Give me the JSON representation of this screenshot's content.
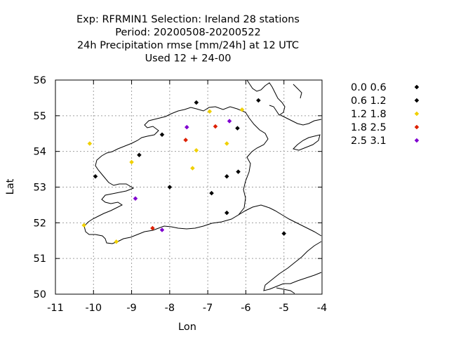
{
  "chart_data": {
    "type": "scatter",
    "title_lines": [
      "Exp: RFRMIN1   Selection: Ireland     28 stations",
      "Period: 20200508-20200522",
      "24h Precipitation rmse [mm/24h] at  12 UTC",
      "Used  12 + 24-00"
    ],
    "xlabel": "Lon",
    "ylabel": "Lat",
    "xlim": [
      -11,
      -4
    ],
    "ylim": [
      50,
      56
    ],
    "xticks": [
      -11,
      -10,
      -9,
      -8,
      -7,
      -6,
      -5,
      -4
    ],
    "yticks": [
      50,
      51,
      52,
      53,
      54,
      55,
      56
    ],
    "grid": true,
    "legend_position": "right",
    "series": [
      {
        "name": "0.0 0.6",
        "color": "#000000",
        "points": [
          [
            -7.3,
            55.37
          ],
          [
            -8.2,
            54.47
          ],
          [
            -8.8,
            53.9
          ],
          [
            -9.95,
            53.3
          ],
          [
            -8.0,
            53.0
          ],
          [
            -6.9,
            52.83
          ],
          [
            -6.5,
            53.3
          ],
          [
            -6.2,
            53.43
          ],
          [
            -6.5,
            52.28
          ],
          [
            -6.22,
            54.65
          ],
          [
            -5.67,
            55.43
          ],
          [
            -5.0,
            51.7
          ]
        ]
      },
      {
        "name": "0.6 1.2",
        "color": "#000000",
        "points": []
      },
      {
        "name": "1.2 1.8",
        "color": "#f0d000",
        "points": [
          [
            -10.1,
            54.22
          ],
          [
            -6.95,
            55.12
          ],
          [
            -6.1,
            55.17
          ],
          [
            -7.3,
            54.03
          ],
          [
            -6.5,
            54.22
          ],
          [
            -9.0,
            53.7
          ],
          [
            -7.4,
            53.53
          ],
          [
            -10.25,
            51.93
          ],
          [
            -9.4,
            51.47
          ]
        ]
      },
      {
        "name": "1.8 2.5",
        "color": "#dd2000",
        "points": [
          [
            -7.58,
            54.32
          ],
          [
            -6.8,
            54.7
          ],
          [
            -8.45,
            51.85
          ]
        ]
      },
      {
        "name": "2.5 3.1",
        "color": "#8000d0",
        "points": [
          [
            -7.55,
            54.68
          ],
          [
            -6.43,
            54.85
          ],
          [
            -8.9,
            52.68
          ],
          [
            -8.2,
            51.8
          ]
        ]
      }
    ]
  }
}
